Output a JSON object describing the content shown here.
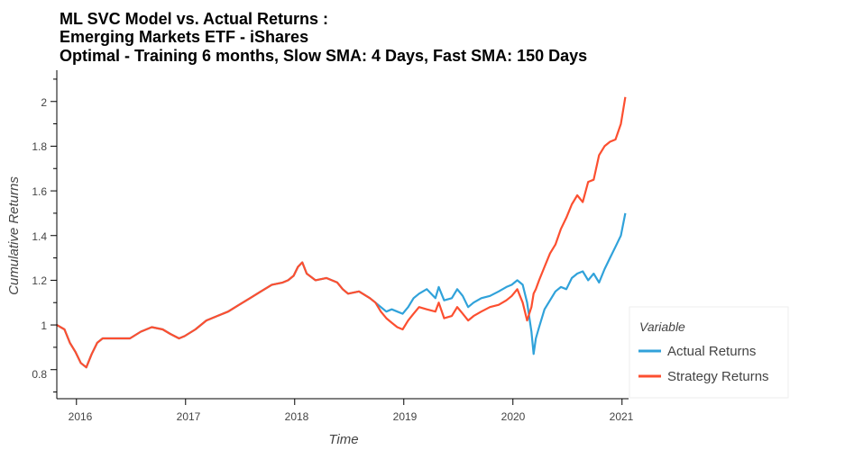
{
  "chart_data": {
    "type": "line",
    "title_lines": [
      "ML SVC Model vs. Actual Returns :",
      "Emerging Markets ETF - iShares",
      "Optimal - Training 6 months, Slow SMA: 4 Days, Fast SMA: 150 Days"
    ],
    "xlabel": "Time",
    "ylabel": "Cumulative Returns",
    "xlim": [
      2015.83,
      2021.07
    ],
    "ylim": [
      0.67,
      2.14
    ],
    "x_ticks": [
      "2016",
      "2017",
      "2018",
      "2019",
      "2020",
      "2021"
    ],
    "y_ticks": [
      "0.8",
      "1",
      "1.2",
      "1.4",
      "1.6",
      "1.8",
      "2"
    ],
    "legend": {
      "title": "Variable",
      "placement": "bottom-right outside"
    },
    "series": [
      {
        "name": "Actual Returns",
        "color": "#30a2da",
        "x": [
          2015.83,
          2015.9,
          2015.95,
          2016.0,
          2016.05,
          2016.1,
          2016.15,
          2016.2,
          2016.25,
          2016.4,
          2016.5,
          2016.6,
          2016.7,
          2016.8,
          2016.87,
          2016.95,
          2017.0,
          2017.1,
          2017.2,
          2017.3,
          2017.4,
          2017.5,
          2017.6,
          2017.7,
          2017.8,
          2017.9,
          2017.95,
          2018.0,
          2018.04,
          2018.08,
          2018.12,
          2018.2,
          2018.3,
          2018.4,
          2018.45,
          2018.5,
          2018.6,
          2018.7,
          2018.75,
          2018.8,
          2018.85,
          2018.9,
          2018.95,
          2019.0,
          2019.05,
          2019.1,
          2019.15,
          2019.22,
          2019.3,
          2019.33,
          2019.38,
          2019.45,
          2019.5,
          2019.55,
          2019.6,
          2019.65,
          2019.72,
          2019.8,
          2019.88,
          2019.95,
          2020.0,
          2020.05,
          2020.1,
          2020.14,
          2020.18,
          2020.2,
          2020.22,
          2020.25,
          2020.3,
          2020.35,
          2020.4,
          2020.45,
          2020.5,
          2020.55,
          2020.6,
          2020.65,
          2020.7,
          2020.75,
          2020.8,
          2020.85,
          2020.9,
          2020.95,
          2021.0,
          2021.04
        ],
        "values": [
          1.0,
          0.98,
          0.92,
          0.88,
          0.83,
          0.81,
          0.87,
          0.92,
          0.94,
          0.94,
          0.94,
          0.97,
          0.99,
          0.98,
          0.96,
          0.94,
          0.95,
          0.98,
          1.02,
          1.04,
          1.06,
          1.09,
          1.12,
          1.15,
          1.18,
          1.19,
          1.2,
          1.22,
          1.26,
          1.28,
          1.23,
          1.2,
          1.21,
          1.19,
          1.16,
          1.14,
          1.15,
          1.12,
          1.1,
          1.08,
          1.06,
          1.07,
          1.06,
          1.05,
          1.08,
          1.12,
          1.14,
          1.16,
          1.12,
          1.17,
          1.11,
          1.12,
          1.16,
          1.13,
          1.08,
          1.1,
          1.12,
          1.13,
          1.15,
          1.17,
          1.18,
          1.2,
          1.18,
          1.1,
          0.97,
          0.87,
          0.94,
          0.99,
          1.07,
          1.11,
          1.15,
          1.17,
          1.16,
          1.21,
          1.23,
          1.24,
          1.2,
          1.23,
          1.19,
          1.25,
          1.3,
          1.35,
          1.4,
          1.5
        ]
      },
      {
        "name": "Strategy Returns",
        "color": "#fc4f30",
        "x": [
          2015.83,
          2015.9,
          2015.95,
          2016.0,
          2016.05,
          2016.1,
          2016.15,
          2016.2,
          2016.25,
          2016.4,
          2016.5,
          2016.6,
          2016.7,
          2016.8,
          2016.87,
          2016.95,
          2017.0,
          2017.1,
          2017.2,
          2017.3,
          2017.4,
          2017.5,
          2017.6,
          2017.7,
          2017.8,
          2017.9,
          2017.95,
          2018.0,
          2018.04,
          2018.08,
          2018.12,
          2018.2,
          2018.3,
          2018.4,
          2018.45,
          2018.5,
          2018.6,
          2018.7,
          2018.75,
          2018.8,
          2018.85,
          2018.9,
          2018.95,
          2019.0,
          2019.05,
          2019.1,
          2019.15,
          2019.22,
          2019.3,
          2019.33,
          2019.38,
          2019.45,
          2019.5,
          2019.55,
          2019.6,
          2019.65,
          2019.72,
          2019.8,
          2019.88,
          2019.95,
          2020.0,
          2020.05,
          2020.1,
          2020.14,
          2020.18,
          2020.2,
          2020.22,
          2020.25,
          2020.3,
          2020.35,
          2020.4,
          2020.45,
          2020.5,
          2020.55,
          2020.6,
          2020.65,
          2020.7,
          2020.75,
          2020.8,
          2020.85,
          2020.9,
          2020.95,
          2021.0,
          2021.04
        ],
        "values": [
          1.0,
          0.98,
          0.92,
          0.88,
          0.83,
          0.81,
          0.87,
          0.92,
          0.94,
          0.94,
          0.94,
          0.97,
          0.99,
          0.98,
          0.96,
          0.94,
          0.95,
          0.98,
          1.02,
          1.04,
          1.06,
          1.09,
          1.12,
          1.15,
          1.18,
          1.19,
          1.2,
          1.22,
          1.26,
          1.28,
          1.23,
          1.2,
          1.21,
          1.19,
          1.16,
          1.14,
          1.15,
          1.12,
          1.1,
          1.06,
          1.03,
          1.01,
          0.99,
          0.98,
          1.02,
          1.05,
          1.08,
          1.07,
          1.06,
          1.1,
          1.03,
          1.04,
          1.08,
          1.05,
          1.02,
          1.04,
          1.06,
          1.08,
          1.09,
          1.11,
          1.13,
          1.16,
          1.1,
          1.02,
          1.08,
          1.14,
          1.16,
          1.2,
          1.26,
          1.32,
          1.36,
          1.43,
          1.48,
          1.54,
          1.58,
          1.55,
          1.64,
          1.65,
          1.76,
          1.8,
          1.82,
          1.83,
          1.9,
          2.02
        ]
      }
    ]
  }
}
